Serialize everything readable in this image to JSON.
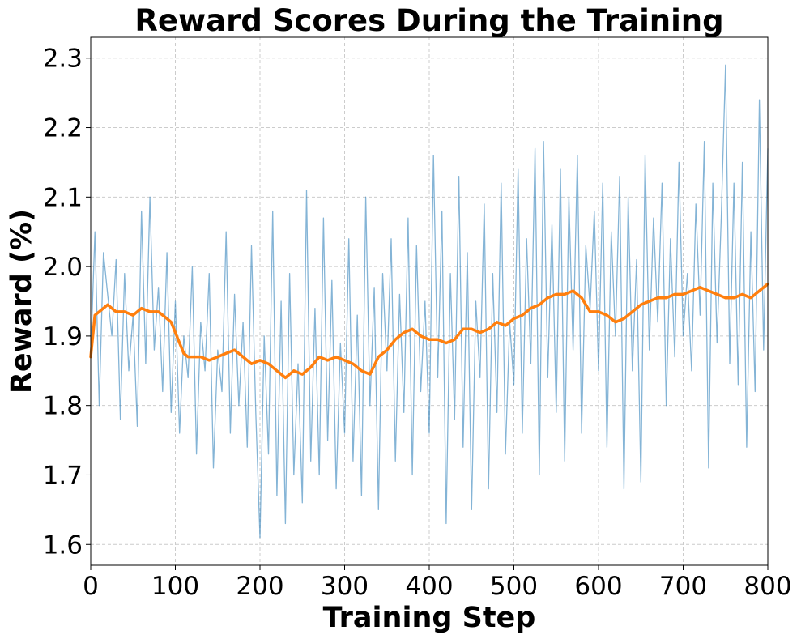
{
  "chart_data": {
    "type": "line",
    "title": "Reward Scores During the Training",
    "xlabel": "Training Step",
    "ylabel": "Reward (%)",
    "xlim": [
      0,
      800
    ],
    "ylim": [
      1.57,
      2.33
    ],
    "xticks": [
      0,
      100,
      200,
      300,
      400,
      500,
      600,
      700,
      800
    ],
    "yticks": [
      1.6,
      1.7,
      1.8,
      1.9,
      2.0,
      2.1,
      2.2,
      2.3
    ],
    "xtick_labels": [
      "0",
      "100",
      "200",
      "300",
      "400",
      "500",
      "600",
      "700",
      "800"
    ],
    "ytick_labels": [
      "1.6",
      "1.7",
      "1.8",
      "1.9",
      "2.0",
      "2.1",
      "2.2",
      "2.3"
    ],
    "grid": true,
    "colors": {
      "raw": "#1f77b4",
      "smoothed": "#ff7f0e",
      "grid": "#cccccc"
    },
    "series": [
      {
        "style": "raw (thin, semi-transparent)",
        "x": [
          0,
          5,
          10,
          15,
          20,
          25,
          30,
          35,
          40,
          45,
          50,
          55,
          60,
          65,
          70,
          75,
          80,
          85,
          90,
          95,
          100,
          105,
          110,
          115,
          120,
          125,
          130,
          135,
          140,
          145,
          150,
          155,
          160,
          165,
          170,
          175,
          180,
          185,
          190,
          195,
          200,
          205,
          210,
          215,
          220,
          225,
          230,
          235,
          240,
          245,
          250,
          255,
          260,
          265,
          270,
          275,
          280,
          285,
          290,
          295,
          300,
          305,
          310,
          315,
          320,
          325,
          330,
          335,
          340,
          345,
          350,
          355,
          360,
          365,
          370,
          375,
          380,
          385,
          390,
          395,
          400,
          405,
          410,
          415,
          420,
          425,
          430,
          435,
          440,
          445,
          450,
          455,
          460,
          465,
          470,
          475,
          480,
          485,
          490,
          495,
          500,
          505,
          510,
          515,
          520,
          525,
          530,
          535,
          540,
          545,
          550,
          555,
          560,
          565,
          570,
          575,
          580,
          585,
          590,
          595,
          600,
          605,
          610,
          615,
          620,
          625,
          630,
          635,
          640,
          645,
          650,
          655,
          660,
          665,
          670,
          675,
          680,
          685,
          690,
          695,
          700,
          705,
          710,
          715,
          720,
          725,
          730,
          735,
          740,
          745,
          750,
          755,
          760,
          765,
          770,
          775,
          780,
          785,
          790,
          795,
          800
        ],
        "values": [
          1.87,
          2.05,
          1.8,
          2.02,
          1.96,
          1.9,
          2.01,
          1.78,
          1.99,
          1.85,
          1.93,
          1.77,
          2.08,
          1.86,
          2.1,
          1.88,
          1.97,
          1.82,
          2.02,
          1.79,
          1.95,
          1.76,
          1.9,
          1.84,
          2.0,
          1.73,
          1.92,
          1.85,
          1.99,
          1.71,
          1.88,
          1.82,
          2.05,
          1.76,
          1.96,
          1.8,
          1.92,
          1.74,
          2.03,
          1.79,
          1.61,
          1.9,
          1.73,
          2.08,
          1.67,
          1.95,
          1.63,
          1.99,
          1.7,
          1.86,
          1.66,
          2.11,
          1.72,
          1.94,
          1.7,
          2.07,
          1.75,
          1.98,
          1.68,
          1.89,
          1.76,
          2.04,
          1.72,
          1.93,
          1.67,
          2.1,
          1.8,
          1.97,
          1.65,
          1.99,
          1.85,
          2.04,
          1.72,
          1.96,
          1.79,
          2.07,
          1.7,
          2.03,
          1.82,
          1.95,
          1.76,
          2.16,
          1.84,
          2.08,
          1.63,
          1.99,
          1.78,
          2.13,
          1.74,
          2.02,
          1.65,
          1.95,
          1.84,
          2.09,
          1.68,
          1.99,
          1.79,
          2.12,
          1.73,
          1.92,
          1.83,
          2.14,
          1.76,
          2.04,
          1.86,
          2.17,
          1.7,
          2.18,
          1.84,
          2.06,
          1.79,
          2.14,
          1.72,
          2.1,
          1.88,
          2.16,
          1.76,
          2.03,
          1.94,
          2.08,
          1.85,
          2.12,
          1.74,
          2.05,
          1.9,
          2.13,
          1.68,
          2.1,
          1.85,
          2.01,
          1.69,
          2.16,
          1.88,
          2.07,
          1.92,
          2.12,
          1.8,
          2.04,
          1.87,
          2.15,
          1.9,
          1.99,
          1.85,
          2.09,
          1.93,
          2.18,
          1.71,
          2.12,
          1.89,
          2.07,
          2.29,
          1.86,
          2.12,
          1.83,
          2.15,
          1.74,
          2.05,
          1.82,
          2.24,
          1.88,
          2.17
        ]
      },
      {
        "style": "smoothed (thick)",
        "x": [
          0,
          5,
          10,
          15,
          20,
          25,
          30,
          40,
          50,
          60,
          70,
          80,
          90,
          95,
          100,
          105,
          110,
          115,
          120,
          130,
          140,
          150,
          160,
          170,
          180,
          190,
          200,
          210,
          220,
          230,
          240,
          250,
          260,
          270,
          280,
          290,
          300,
          310,
          320,
          330,
          340,
          350,
          360,
          370,
          380,
          390,
          400,
          410,
          420,
          430,
          440,
          450,
          460,
          470,
          480,
          490,
          500,
          510,
          520,
          530,
          540,
          550,
          560,
          570,
          580,
          590,
          600,
          610,
          620,
          630,
          640,
          650,
          660,
          670,
          680,
          690,
          700,
          710,
          720,
          730,
          740,
          750,
          760,
          770,
          780,
          790,
          800
        ],
        "values": [
          1.87,
          1.93,
          1.935,
          1.94,
          1.945,
          1.94,
          1.935,
          1.935,
          1.93,
          1.94,
          1.935,
          1.935,
          1.925,
          1.92,
          1.905,
          1.89,
          1.875,
          1.87,
          1.87,
          1.87,
          1.865,
          1.87,
          1.875,
          1.88,
          1.87,
          1.86,
          1.865,
          1.86,
          1.85,
          1.84,
          1.85,
          1.845,
          1.855,
          1.87,
          1.865,
          1.87,
          1.865,
          1.86,
          1.85,
          1.845,
          1.87,
          1.88,
          1.895,
          1.905,
          1.91,
          1.9,
          1.895,
          1.895,
          1.89,
          1.895,
          1.91,
          1.91,
          1.905,
          1.91,
          1.92,
          1.915,
          1.925,
          1.93,
          1.94,
          1.945,
          1.955,
          1.96,
          1.96,
          1.965,
          1.955,
          1.935,
          1.935,
          1.93,
          1.92,
          1.925,
          1.935,
          1.945,
          1.95,
          1.955,
          1.955,
          1.96,
          1.96,
          1.965,
          1.97,
          1.965,
          1.96,
          1.955,
          1.955,
          1.96,
          1.955,
          1.965,
          1.975
        ]
      }
    ]
  }
}
